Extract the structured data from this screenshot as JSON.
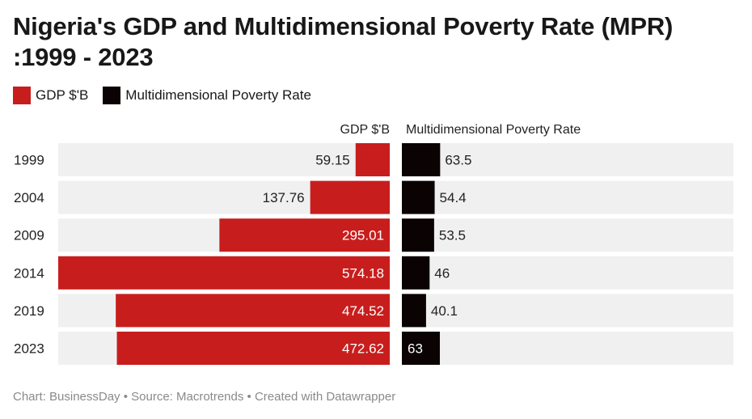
{
  "title": "Nigeria's GDP and Multidimensional Poverty Rate (MPR) :1999 - 2023",
  "legend": [
    {
      "label": "GDP $'B",
      "color": "#c71e1d"
    },
    {
      "label": "Multidimensional Poverty Rate",
      "color": "#0a0203"
    }
  ],
  "footer": "Chart: BusinessDay • Source: Macrotrends • Created with Datawrapper",
  "chart_data": {
    "type": "bar",
    "orientation": "horizontal",
    "categories": [
      "1999",
      "2004",
      "2009",
      "2014",
      "2019",
      "2023"
    ],
    "series": [
      {
        "name": "GDP $'B",
        "values": [
          59.15,
          137.76,
          295.01,
          574.18,
          474.52,
          472.62
        ],
        "color": "#c71e1d",
        "direction": "left"
      },
      {
        "name": "Multidimensional Poverty Rate",
        "values": [
          63.5,
          54.4,
          53.5,
          46,
          40.1,
          63
        ],
        "color": "#0a0203",
        "direction": "right"
      }
    ],
    "column_headers": [
      "GDP $'B",
      "Multidimensional Poverty Rate"
    ],
    "gdp_range": [
      0,
      574.18
    ],
    "mpr_range": [
      0,
      550
    ],
    "background_bar_color": "#f0f0f0",
    "grid": false
  }
}
